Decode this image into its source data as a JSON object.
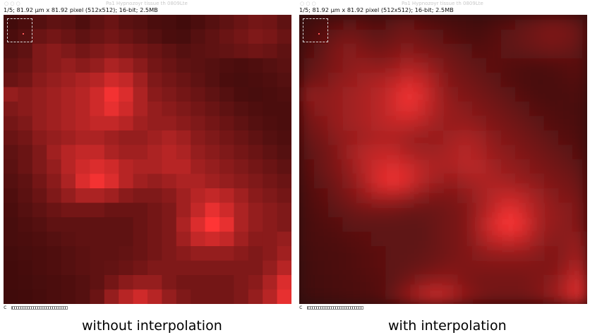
{
  "panels": [
    {
      "window_title": "Pa1 Hypnozoyr tissue th 0809Lte",
      "window_controls": "○ ○ ○",
      "info_line": "1/5; 81.92 µm x 81.92 pixel (512x512); 16-bit; 2.5MB",
      "caption": "without interpolation",
      "rendering": "pixelated"
    },
    {
      "window_title": "Pa1 Hypnozoyr tissue th 0809Lte",
      "window_controls": "○ ○ ○",
      "info_line": "1/5; 81.92 µm x 81.92 pixel (512x512); 16-bit; 2.5MB",
      "caption": "with interpolation",
      "rendering": "smooth"
    }
  ],
  "scrollbar_arrow": "c",
  "image": {
    "grid_size": 20,
    "background_color": "#2a0606",
    "peak_color": "#ff3535",
    "intensity": [
      [
        0.15,
        0.2,
        0.25,
        0.3,
        0.28,
        0.22,
        0.3,
        0.35,
        0.28,
        0.25,
        0.2,
        0.18,
        0.15,
        0.2,
        0.25,
        0.3,
        0.35,
        0.4,
        0.38,
        0.3
      ],
      [
        0.2,
        0.25,
        0.35,
        0.4,
        0.35,
        0.3,
        0.35,
        0.4,
        0.35,
        0.3,
        0.25,
        0.2,
        0.18,
        0.25,
        0.3,
        0.35,
        0.4,
        0.45,
        0.42,
        0.35
      ],
      [
        0.25,
        0.3,
        0.45,
        0.5,
        0.45,
        0.4,
        0.45,
        0.5,
        0.45,
        0.4,
        0.35,
        0.3,
        0.25,
        0.28,
        0.3,
        0.32,
        0.35,
        0.38,
        0.35,
        0.3
      ],
      [
        0.3,
        0.35,
        0.45,
        0.5,
        0.55,
        0.5,
        0.55,
        0.65,
        0.6,
        0.5,
        0.4,
        0.35,
        0.3,
        0.28,
        0.25,
        0.22,
        0.2,
        0.22,
        0.25,
        0.28
      ],
      [
        0.35,
        0.4,
        0.5,
        0.55,
        0.6,
        0.65,
        0.7,
        0.8,
        0.75,
        0.6,
        0.45,
        0.4,
        0.35,
        0.3,
        0.25,
        0.2,
        0.18,
        0.2,
        0.22,
        0.25
      ],
      [
        0.55,
        0.5,
        0.55,
        0.6,
        0.65,
        0.7,
        0.8,
        0.95,
        0.85,
        0.65,
        0.5,
        0.45,
        0.4,
        0.35,
        0.3,
        0.25,
        0.2,
        0.18,
        0.2,
        0.22
      ],
      [
        0.45,
        0.5,
        0.55,
        0.6,
        0.65,
        0.7,
        0.8,
        0.9,
        0.8,
        0.65,
        0.55,
        0.5,
        0.45,
        0.4,
        0.35,
        0.3,
        0.25,
        0.22,
        0.2,
        0.2
      ],
      [
        0.4,
        0.45,
        0.55,
        0.6,
        0.65,
        0.7,
        0.75,
        0.75,
        0.7,
        0.6,
        0.55,
        0.55,
        0.5,
        0.45,
        0.4,
        0.35,
        0.3,
        0.25,
        0.22,
        0.2
      ],
      [
        0.35,
        0.4,
        0.5,
        0.55,
        0.6,
        0.65,
        0.65,
        0.6,
        0.55,
        0.55,
        0.6,
        0.65,
        0.6,
        0.5,
        0.45,
        0.4,
        0.35,
        0.3,
        0.25,
        0.22
      ],
      [
        0.3,
        0.35,
        0.45,
        0.6,
        0.7,
        0.75,
        0.75,
        0.65,
        0.6,
        0.6,
        0.65,
        0.7,
        0.65,
        0.55,
        0.5,
        0.45,
        0.4,
        0.35,
        0.3,
        0.25
      ],
      [
        0.28,
        0.35,
        0.45,
        0.55,
        0.7,
        0.8,
        0.85,
        0.8,
        0.7,
        0.65,
        0.65,
        0.7,
        0.7,
        0.6,
        0.55,
        0.5,
        0.45,
        0.4,
        0.35,
        0.3
      ],
      [
        0.25,
        0.3,
        0.4,
        0.5,
        0.65,
        0.85,
        0.95,
        0.85,
        0.7,
        0.6,
        0.55,
        0.6,
        0.65,
        0.65,
        0.6,
        0.55,
        0.5,
        0.45,
        0.4,
        0.35
      ],
      [
        0.22,
        0.28,
        0.35,
        0.45,
        0.55,
        0.65,
        0.65,
        0.6,
        0.5,
        0.45,
        0.45,
        0.5,
        0.6,
        0.7,
        0.75,
        0.7,
        0.6,
        0.5,
        0.45,
        0.4
      ],
      [
        0.2,
        0.25,
        0.3,
        0.35,
        0.4,
        0.4,
        0.4,
        0.35,
        0.35,
        0.35,
        0.4,
        0.45,
        0.6,
        0.75,
        0.9,
        0.8,
        0.65,
        0.55,
        0.5,
        0.45
      ],
      [
        0.18,
        0.22,
        0.25,
        0.3,
        0.3,
        0.3,
        0.3,
        0.3,
        0.3,
        0.35,
        0.4,
        0.45,
        0.65,
        0.85,
        1.0,
        0.9,
        0.65,
        0.55,
        0.5,
        0.45
      ],
      [
        0.18,
        0.2,
        0.22,
        0.25,
        0.28,
        0.3,
        0.3,
        0.3,
        0.3,
        0.35,
        0.4,
        0.45,
        0.6,
        0.75,
        0.8,
        0.75,
        0.6,
        0.5,
        0.5,
        0.55
      ],
      [
        0.16,
        0.18,
        0.2,
        0.22,
        0.25,
        0.28,
        0.3,
        0.3,
        0.32,
        0.35,
        0.4,
        0.45,
        0.5,
        0.55,
        0.55,
        0.55,
        0.5,
        0.45,
        0.5,
        0.6
      ],
      [
        0.15,
        0.17,
        0.2,
        0.22,
        0.25,
        0.28,
        0.3,
        0.32,
        0.35,
        0.4,
        0.45,
        0.45,
        0.45,
        0.45,
        0.45,
        0.45,
        0.45,
        0.45,
        0.55,
        0.7
      ],
      [
        0.15,
        0.16,
        0.18,
        0.2,
        0.22,
        0.25,
        0.3,
        0.4,
        0.5,
        0.55,
        0.55,
        0.45,
        0.4,
        0.4,
        0.4,
        0.4,
        0.45,
        0.5,
        0.65,
        0.85
      ],
      [
        0.14,
        0.15,
        0.17,
        0.2,
        0.22,
        0.25,
        0.35,
        0.55,
        0.7,
        0.8,
        0.7,
        0.55,
        0.45,
        0.4,
        0.4,
        0.4,
        0.45,
        0.55,
        0.7,
        0.9
      ]
    ]
  }
}
